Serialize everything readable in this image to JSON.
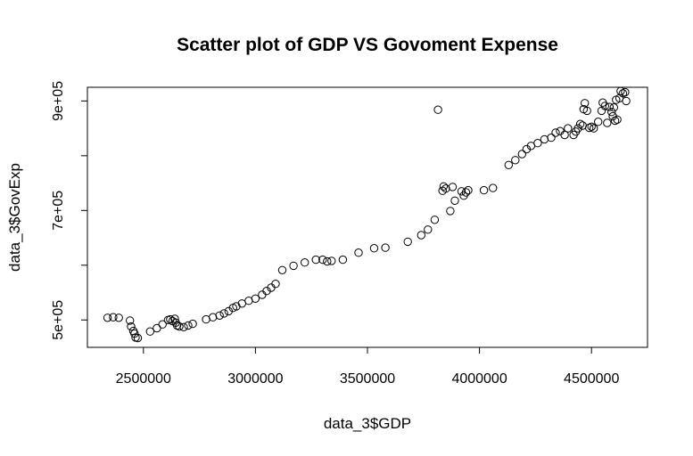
{
  "chart_data": {
    "type": "scatter",
    "title": "Scatter plot of GDP VS Govoment Expense",
    "xlabel": "data_3$GDP",
    "ylabel": "data_3$GovExp",
    "xlim": [
      2250000,
      4750000
    ],
    "ylim": [
      450000,
      925000
    ],
    "x_ticks": [
      {
        "value": 2500000,
        "label": "2500000"
      },
      {
        "value": 3000000,
        "label": "3000000"
      },
      {
        "value": 3500000,
        "label": "3500000"
      },
      {
        "value": 4000000,
        "label": "4000000"
      },
      {
        "value": 4500000,
        "label": "4500000"
      }
    ],
    "y_ticks": [
      {
        "value": 500000,
        "label": "5e+05"
      },
      {
        "value": 600000,
        "label": ""
      },
      {
        "value": 700000,
        "label": "7e+05"
      },
      {
        "value": 800000,
        "label": ""
      },
      {
        "value": 900000,
        "label": "9e+05"
      }
    ],
    "grid": false,
    "marker": "open-circle",
    "points": [
      [
        2340000,
        504000
      ],
      [
        2365000,
        505000
      ],
      [
        2390000,
        504000
      ],
      [
        2440000,
        499000
      ],
      [
        2445000,
        488000
      ],
      [
        2455000,
        480000
      ],
      [
        2460000,
        475000
      ],
      [
        2465000,
        468000
      ],
      [
        2475000,
        467000
      ],
      [
        2530000,
        479000
      ],
      [
        2560000,
        485000
      ],
      [
        2585000,
        492000
      ],
      [
        2610000,
        500000
      ],
      [
        2620000,
        501000
      ],
      [
        2630000,
        498000
      ],
      [
        2640000,
        502000
      ],
      [
        2645000,
        495000
      ],
      [
        2650000,
        490000
      ],
      [
        2660000,
        488000
      ],
      [
        2680000,
        487000
      ],
      [
        2700000,
        490000
      ],
      [
        2720000,
        493000
      ],
      [
        2780000,
        501000
      ],
      [
        2810000,
        505000
      ],
      [
        2840000,
        508000
      ],
      [
        2860000,
        512000
      ],
      [
        2880000,
        516000
      ],
      [
        2900000,
        522000
      ],
      [
        2915000,
        525000
      ],
      [
        2940000,
        530000
      ],
      [
        2970000,
        535000
      ],
      [
        3000000,
        539000
      ],
      [
        3030000,
        546000
      ],
      [
        3050000,
        553000
      ],
      [
        3070000,
        559000
      ],
      [
        3090000,
        566000
      ],
      [
        3120000,
        591000
      ],
      [
        3170000,
        599000
      ],
      [
        3220000,
        605000
      ],
      [
        3270000,
        610000
      ],
      [
        3300000,
        610000
      ],
      [
        3320000,
        607000
      ],
      [
        3340000,
        608000
      ],
      [
        3390000,
        610000
      ],
      [
        3460000,
        623000
      ],
      [
        3530000,
        631000
      ],
      [
        3580000,
        632000
      ],
      [
        3680000,
        643000
      ],
      [
        3740000,
        655000
      ],
      [
        3770000,
        665000
      ],
      [
        3800000,
        683000
      ],
      [
        3815000,
        884000
      ],
      [
        3835000,
        736000
      ],
      [
        3840000,
        744000
      ],
      [
        3850000,
        740000
      ],
      [
        3870000,
        699000
      ],
      [
        3880000,
        743000
      ],
      [
        3890000,
        718000
      ],
      [
        3920000,
        735000
      ],
      [
        3930000,
        727000
      ],
      [
        3940000,
        733000
      ],
      [
        3950000,
        737000
      ],
      [
        4020000,
        737000
      ],
      [
        4060000,
        741000
      ],
      [
        4130000,
        783000
      ],
      [
        4160000,
        792000
      ],
      [
        4190000,
        803000
      ],
      [
        4210000,
        812000
      ],
      [
        4230000,
        818000
      ],
      [
        4260000,
        823000
      ],
      [
        4290000,
        830000
      ],
      [
        4320000,
        833000
      ],
      [
        4340000,
        842000
      ],
      [
        4360000,
        845000
      ],
      [
        4380000,
        838000
      ],
      [
        4395000,
        850000
      ],
      [
        4420000,
        838000
      ],
      [
        4430000,
        844000
      ],
      [
        4440000,
        850000
      ],
      [
        4450000,
        858000
      ],
      [
        4460000,
        855000
      ],
      [
        4465000,
        885000
      ],
      [
        4470000,
        896000
      ],
      [
        4480000,
        882000
      ],
      [
        4490000,
        851000
      ],
      [
        4500000,
        853000
      ],
      [
        4510000,
        850000
      ],
      [
        4530000,
        862000
      ],
      [
        4545000,
        882000
      ],
      [
        4550000,
        897000
      ],
      [
        4560000,
        891000
      ],
      [
        4570000,
        860000
      ],
      [
        4580000,
        889000
      ],
      [
        4590000,
        880000
      ],
      [
        4595000,
        872000
      ],
      [
        4600000,
        888000
      ],
      [
        4605000,
        864000
      ],
      [
        4610000,
        902000
      ],
      [
        4615000,
        866000
      ],
      [
        4625000,
        905000
      ],
      [
        4630000,
        918000
      ],
      [
        4640000,
        914000
      ],
      [
        4650000,
        916000
      ],
      [
        4655000,
        900000
      ]
    ]
  }
}
